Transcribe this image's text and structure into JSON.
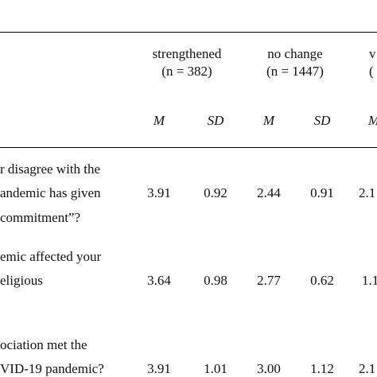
{
  "groups": [
    {
      "name": "strengthened",
      "n": "(n = 382)"
    },
    {
      "name": "no change",
      "n": "(n = 1447)"
    },
    {
      "name": "v",
      "n": "("
    }
  ],
  "subheaders": [
    "M",
    "SD",
    "M",
    "SD",
    "M"
  ],
  "rows": [
    {
      "question_lines": [
        "r disagree with the",
        "andemic has given",
        "commitment”?"
      ],
      "values": [
        "3.91",
        "0.92",
        "2.44",
        "0.91",
        "2.1"
      ]
    },
    {
      "question_lines": [
        "emic affected your",
        "eligious"
      ],
      "values": [
        "3.64",
        "0.98",
        "2.77",
        "0.62",
        "1.1"
      ]
    },
    {
      "question_lines": [
        "ociation met the",
        "VID-19 pandemic?"
      ],
      "values": [
        "3.91",
        "1.01",
        "3.00",
        "1.12",
        "2.1"
      ]
    }
  ]
}
